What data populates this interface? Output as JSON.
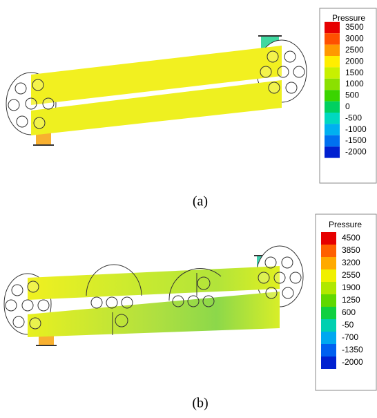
{
  "figure_a": {
    "legend": {
      "title": "Pressure",
      "labels": [
        3500,
        3000,
        2500,
        2000,
        1500,
        1000,
        500,
        0,
        -500,
        -1000,
        -1500,
        -2000
      ],
      "colors": [
        "#e60000",
        "#ff5000",
        "#ff9900",
        "#ffee00",
        "#c8f000",
        "#8be000",
        "#3ad400",
        "#00d060",
        "#00d8c0",
        "#00b0f0",
        "#0070f0",
        "#0020d0"
      ]
    },
    "caption": "(a)"
  },
  "figure_b": {
    "legend": {
      "title": "Pressure",
      "labels": [
        4500,
        3850,
        3200,
        2550,
        1900,
        1250,
        600,
        -50,
        -700,
        -1350,
        -2000
      ],
      "colors": [
        "#e60000",
        "#ff6000",
        "#ffaa00",
        "#f0f000",
        "#b0e800",
        "#60d800",
        "#10d040",
        "#00d0b0",
        "#00a8f0",
        "#0060f0",
        "#0020d0"
      ]
    },
    "caption": "(b)"
  }
}
